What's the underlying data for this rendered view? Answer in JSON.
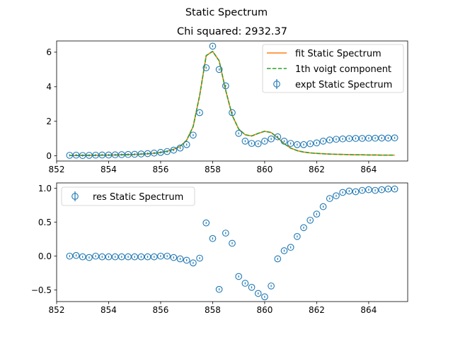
{
  "figure": {
    "suptitle": "Static Spectrum"
  },
  "chart_data": [
    {
      "type": "scatter",
      "title": "Chi squared:  2932.37",
      "xlabel": "",
      "ylabel": "",
      "xlim": [
        852.0,
        865.5
      ],
      "ylim": [
        -0.3,
        6.65
      ],
      "xticks": [
        852,
        854,
        856,
        858,
        860,
        862,
        864
      ],
      "xtick_labels": [
        "852",
        "854",
        "856",
        "858",
        "860",
        "862",
        "864"
      ],
      "yticks": [
        0,
        2,
        4,
        6
      ],
      "ytick_labels": [
        "0",
        "2",
        "4",
        "6"
      ],
      "grid": false,
      "legend_position": "top-right",
      "series": [
        {
          "name": "fit Static Spectrum",
          "kind": "line",
          "color": "#ff7f0e",
          "x": [
            852.5,
            852.75,
            853.0,
            853.25,
            853.5,
            853.75,
            854.0,
            854.25,
            854.5,
            854.75,
            855.0,
            855.25,
            855.5,
            855.75,
            856.0,
            856.25,
            856.5,
            856.75,
            857.0,
            857.25,
            857.5,
            857.75,
            858.0,
            858.25,
            858.5,
            858.75,
            859.0,
            859.25,
            859.5,
            859.75,
            860.0,
            860.25,
            860.5,
            860.75,
            861.0,
            861.25,
            861.5,
            861.75,
            862.0,
            862.25,
            862.5,
            862.75,
            863.0,
            863.25,
            863.5,
            863.75,
            864.0,
            864.25,
            864.5,
            864.75,
            865.0
          ],
          "y": [
            0.02,
            0.02,
            0.03,
            0.03,
            0.03,
            0.04,
            0.04,
            0.05,
            0.06,
            0.07,
            0.08,
            0.1,
            0.12,
            0.15,
            0.2,
            0.27,
            0.38,
            0.55,
            0.9,
            1.7,
            3.5,
            5.8,
            6.05,
            5.5,
            3.8,
            2.35,
            1.55,
            1.22,
            1.15,
            1.3,
            1.42,
            1.35,
            1.05,
            0.7,
            0.45,
            0.3,
            0.22,
            0.17,
            0.14,
            0.12,
            0.1,
            0.09,
            0.08,
            0.07,
            0.06,
            0.06,
            0.05,
            0.05,
            0.04,
            0.04,
            0.04
          ]
        },
        {
          "name": "1th voigt component",
          "kind": "dashed-line",
          "color": "#2ca02c",
          "x": [
            852.5,
            852.75,
            853.0,
            853.25,
            853.5,
            853.75,
            854.0,
            854.25,
            854.5,
            854.75,
            855.0,
            855.25,
            855.5,
            855.75,
            856.0,
            856.25,
            856.5,
            856.75,
            857.0,
            857.25,
            857.5,
            857.75,
            858.0,
            858.25,
            858.5,
            858.75,
            859.0,
            859.25,
            859.5,
            859.75,
            860.0,
            860.25,
            860.5,
            860.75,
            861.0,
            861.25,
            861.5,
            861.75,
            862.0,
            862.25,
            862.5,
            862.75,
            863.0,
            863.25,
            863.5,
            863.75,
            864.0,
            864.25,
            864.5,
            864.75,
            865.0
          ],
          "y": [
            0.02,
            0.02,
            0.03,
            0.03,
            0.03,
            0.04,
            0.04,
            0.05,
            0.06,
            0.07,
            0.08,
            0.1,
            0.12,
            0.15,
            0.2,
            0.27,
            0.38,
            0.55,
            0.9,
            1.7,
            3.5,
            5.8,
            6.05,
            5.5,
            3.8,
            2.35,
            1.55,
            1.22,
            1.15,
            1.3,
            1.42,
            1.35,
            1.05,
            0.7,
            0.45,
            0.3,
            0.22,
            0.17,
            0.14,
            0.12,
            0.1,
            0.09,
            0.08,
            0.07,
            0.06,
            0.06,
            0.05,
            0.05,
            0.04,
            0.04,
            0.04
          ]
        },
        {
          "name": "expt Static Spectrum",
          "kind": "errorbar-points",
          "color": "#1f77b4",
          "x": [
            852.5,
            852.75,
            853.0,
            853.25,
            853.5,
            853.75,
            854.0,
            854.25,
            854.5,
            854.75,
            855.0,
            855.25,
            855.5,
            855.75,
            856.0,
            856.25,
            856.5,
            856.75,
            857.0,
            857.25,
            857.5,
            857.75,
            858.0,
            858.25,
            858.5,
            858.75,
            859.0,
            859.25,
            859.5,
            859.75,
            860.0,
            860.25,
            860.5,
            860.75,
            861.0,
            861.25,
            861.5,
            861.75,
            862.0,
            862.25,
            862.5,
            862.75,
            863.0,
            863.25,
            863.5,
            863.75,
            864.0,
            864.25,
            864.5,
            864.75,
            865.0
          ],
          "y": [
            0.03,
            0.04,
            0.02,
            0.03,
            0.04,
            0.05,
            0.05,
            0.06,
            0.07,
            0.08,
            0.09,
            0.11,
            0.13,
            0.16,
            0.2,
            0.25,
            0.33,
            0.45,
            0.65,
            1.2,
            2.5,
            5.1,
            6.35,
            5.0,
            4.05,
            2.5,
            1.3,
            0.85,
            0.72,
            0.7,
            0.85,
            0.98,
            1.1,
            0.85,
            0.72,
            0.65,
            0.65,
            0.7,
            0.75,
            0.85,
            0.92,
            0.96,
            0.98,
            1.0,
            1.01,
            1.01,
            1.02,
            1.02,
            1.03,
            1.03,
            1.04
          ]
        }
      ]
    },
    {
      "type": "scatter",
      "title": "",
      "xlabel": "",
      "ylabel": "",
      "xlim": [
        852.0,
        865.5
      ],
      "ylim": [
        -0.67,
        1.08
      ],
      "xticks": [
        852,
        854,
        856,
        858,
        860,
        862,
        864
      ],
      "xtick_labels": [
        "852",
        "854",
        "856",
        "858",
        "860",
        "862",
        "864"
      ],
      "yticks": [
        -0.5,
        0.0,
        0.5,
        1.0
      ],
      "ytick_labels": [
        "−0.5",
        "0.0",
        "0.5",
        "1.0"
      ],
      "grid": false,
      "legend_position": "top-left",
      "series": [
        {
          "name": "res Static Spectrum",
          "kind": "errorbar-points",
          "color": "#1f77b4",
          "x": [
            852.5,
            852.75,
            853.0,
            853.25,
            853.5,
            853.75,
            854.0,
            854.25,
            854.5,
            854.75,
            855.0,
            855.25,
            855.5,
            855.75,
            856.0,
            856.25,
            856.5,
            856.75,
            857.0,
            857.25,
            857.5,
            857.75,
            858.0,
            858.25,
            858.5,
            858.75,
            859.0,
            859.25,
            859.5,
            859.75,
            860.0,
            860.25,
            860.5,
            860.75,
            861.0,
            861.25,
            861.5,
            861.75,
            862.0,
            862.25,
            862.5,
            862.75,
            863.0,
            863.25,
            863.5,
            863.75,
            864.0,
            864.25,
            864.5,
            864.75,
            865.0
          ],
          "y": [
            0.0,
            0.01,
            -0.01,
            -0.02,
            0.0,
            -0.01,
            -0.01,
            -0.01,
            -0.01,
            -0.01,
            -0.01,
            -0.01,
            -0.01,
            -0.01,
            0.0,
            0.0,
            -0.02,
            -0.04,
            -0.06,
            -0.1,
            -0.03,
            0.49,
            0.26,
            -0.49,
            0.34,
            0.19,
            -0.3,
            -0.4,
            -0.46,
            -0.55,
            -0.6,
            -0.44,
            -0.04,
            0.08,
            0.13,
            0.29,
            0.42,
            0.53,
            0.62,
            0.73,
            0.85,
            0.89,
            0.94,
            0.96,
            0.95,
            0.97,
            0.98,
            0.97,
            0.98,
            0.99,
            0.99
          ]
        }
      ]
    }
  ]
}
